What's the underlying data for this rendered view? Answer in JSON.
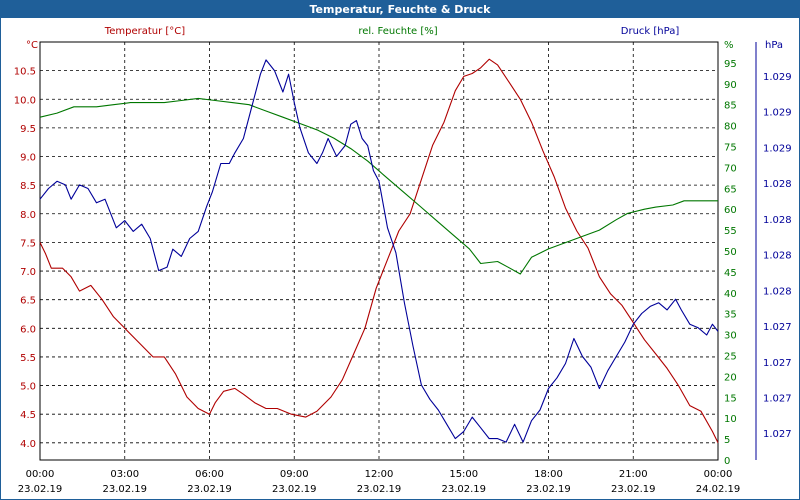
{
  "window": {
    "title": "Temperatur, Feuchte & Druck"
  },
  "chart_data": {
    "type": "line",
    "title": "Temperatur, Feuchte & Druck",
    "grid": true,
    "colors": {
      "temperature": "#b00000",
      "humidity": "#007700",
      "pressure": "#000099",
      "frame": "#1f5f99",
      "grid": "#000000"
    },
    "x": {
      "min": 0,
      "max": 24,
      "ticks": [
        0,
        3,
        6,
        9,
        12,
        15,
        18,
        21,
        24
      ],
      "tick_labels": [
        "00:00",
        "03:00",
        "06:00",
        "09:00",
        "12:00",
        "15:00",
        "18:00",
        "21:00",
        "00:00"
      ],
      "date_labels": [
        "23.02.19",
        "23.02.19",
        "23.02.19",
        "23.02.19",
        "23.02.19",
        "23.02.19",
        "23.02.19",
        "23.02.19",
        "24.02.19"
      ]
    },
    "axes": {
      "temperature": {
        "label": "Temperatur [°C]",
        "unit": "°C",
        "min": 3.7,
        "max": 11.0,
        "ticks": [
          4.0,
          4.5,
          5.0,
          5.5,
          6.0,
          6.5,
          7.0,
          7.5,
          8.0,
          8.5,
          9.0,
          9.5,
          10.0,
          10.5
        ],
        "tick_labels": [
          "4.0",
          "4.5",
          "5.0",
          "5.5",
          "6.0",
          "6.5",
          "7.0",
          "7.5",
          "8.0",
          "8.5",
          "9.0",
          "9.5",
          "10.0",
          "10.5"
        ]
      },
      "humidity": {
        "label": "rel. Feuchte [%]",
        "unit": "%",
        "min": 0,
        "max": 100,
        "ticks": [
          0,
          5,
          10,
          15,
          20,
          25,
          30,
          35,
          40,
          45,
          50,
          55,
          60,
          65,
          70,
          75,
          80,
          85,
          90,
          95
        ],
        "tick_labels": [
          "0",
          "5",
          "10",
          "15",
          "20",
          "25",
          "30",
          "35",
          "40",
          "45",
          "50",
          "55",
          "60",
          "65",
          "70",
          "75",
          "80",
          "85",
          "90",
          "95"
        ]
      },
      "pressure": {
        "label": "Druck [hPa]",
        "unit": "hPa",
        "min": 0,
        "max": 11.7,
        "ticks": [
          0.75,
          1.75,
          2.75,
          3.75,
          4.75,
          5.75,
          6.75,
          7.75,
          8.75,
          9.75,
          10.75
        ],
        "tick_labels": [
          "1.027",
          "1.027",
          "1.027",
          "1.027",
          "1.028",
          "1.028",
          "1.028",
          "1.028",
          "1.029",
          "1.029",
          "1.029"
        ]
      }
    },
    "series": [
      {
        "name": "Temperatur [°C]",
        "axis": "temperature",
        "points": [
          [
            0,
            7.5
          ],
          [
            0.2,
            7.3
          ],
          [
            0.4,
            7.05
          ],
          [
            0.8,
            7.05
          ],
          [
            1.1,
            6.9
          ],
          [
            1.4,
            6.65
          ],
          [
            1.8,
            6.75
          ],
          [
            2.2,
            6.5
          ],
          [
            2.6,
            6.2
          ],
          [
            3,
            6.0
          ],
          [
            3.4,
            5.8
          ],
          [
            3.7,
            5.65
          ],
          [
            4.0,
            5.5
          ],
          [
            4.4,
            5.5
          ],
          [
            4.8,
            5.2
          ],
          [
            5.2,
            4.8
          ],
          [
            5.6,
            4.6
          ],
          [
            6.0,
            4.5
          ],
          [
            6.2,
            4.7
          ],
          [
            6.5,
            4.9
          ],
          [
            6.9,
            4.95
          ],
          [
            7.2,
            4.85
          ],
          [
            7.6,
            4.7
          ],
          [
            8.0,
            4.6
          ],
          [
            8.4,
            4.6
          ],
          [
            8.9,
            4.5
          ],
          [
            9.4,
            4.45
          ],
          [
            9.8,
            4.55
          ],
          [
            10.3,
            4.8
          ],
          [
            10.7,
            5.1
          ],
          [
            11.1,
            5.55
          ],
          [
            11.5,
            6.0
          ],
          [
            11.9,
            6.7
          ],
          [
            12.3,
            7.2
          ],
          [
            12.7,
            7.7
          ],
          [
            13.1,
            8.0
          ],
          [
            13.5,
            8.6
          ],
          [
            13.9,
            9.2
          ],
          [
            14.3,
            9.6
          ],
          [
            14.7,
            10.15
          ],
          [
            15.0,
            10.4
          ],
          [
            15.3,
            10.45
          ],
          [
            15.6,
            10.55
          ],
          [
            15.9,
            10.7
          ],
          [
            16.2,
            10.6
          ],
          [
            16.6,
            10.3
          ],
          [
            17.0,
            10.0
          ],
          [
            17.4,
            9.6
          ],
          [
            17.8,
            9.1
          ],
          [
            18.2,
            8.65
          ],
          [
            18.6,
            8.1
          ],
          [
            19.0,
            7.7
          ],
          [
            19.4,
            7.4
          ],
          [
            19.8,
            6.9
          ],
          [
            20.2,
            6.6
          ],
          [
            20.6,
            6.4
          ],
          [
            21.0,
            6.1
          ],
          [
            21.4,
            5.8
          ],
          [
            21.8,
            5.55
          ],
          [
            22.2,
            5.3
          ],
          [
            22.6,
            5.0
          ],
          [
            23.0,
            4.65
          ],
          [
            23.4,
            4.55
          ],
          [
            23.8,
            4.2
          ],
          [
            24.0,
            4.0
          ]
        ]
      },
      {
        "name": "rel. Feuchte [%]",
        "axis": "humidity",
        "points": [
          [
            0,
            82
          ],
          [
            0.6,
            83
          ],
          [
            1.2,
            84.5
          ],
          [
            2.0,
            84.5
          ],
          [
            2.6,
            85
          ],
          [
            3.2,
            85.5
          ],
          [
            3.8,
            85.5
          ],
          [
            4.4,
            85.5
          ],
          [
            5.0,
            86
          ],
          [
            5.6,
            86.5
          ],
          [
            6.2,
            86
          ],
          [
            6.8,
            85.5
          ],
          [
            7.4,
            85
          ],
          [
            8.0,
            83.5
          ],
          [
            8.6,
            82
          ],
          [
            9.2,
            80.5
          ],
          [
            9.8,
            79
          ],
          [
            10.4,
            77
          ],
          [
            11.0,
            74.5
          ],
          [
            11.6,
            71.5
          ],
          [
            12.2,
            68
          ],
          [
            12.8,
            64.5
          ],
          [
            13.4,
            61
          ],
          [
            14.0,
            57.5
          ],
          [
            14.6,
            54
          ],
          [
            15.2,
            50.5
          ],
          [
            15.6,
            47
          ],
          [
            16.2,
            47.5
          ],
          [
            16.6,
            46
          ],
          [
            17.0,
            44.5
          ],
          [
            17.4,
            48.5
          ],
          [
            18.0,
            50.5
          ],
          [
            18.6,
            52
          ],
          [
            19.2,
            53.5
          ],
          [
            19.8,
            55
          ],
          [
            20.4,
            57.5
          ],
          [
            20.8,
            59
          ],
          [
            21.4,
            60
          ],
          [
            21.8,
            60.5
          ],
          [
            22.4,
            61
          ],
          [
            22.8,
            62
          ],
          [
            23.4,
            62
          ],
          [
            24.0,
            62
          ]
        ]
      },
      {
        "name": "Druck [hPa]",
        "axis": "pressure",
        "points": [
          [
            0,
            7.3
          ],
          [
            0.3,
            7.6
          ],
          [
            0.6,
            7.8
          ],
          [
            0.9,
            7.7
          ],
          [
            1.1,
            7.3
          ],
          [
            1.4,
            7.7
          ],
          [
            1.7,
            7.6
          ],
          [
            2.0,
            7.2
          ],
          [
            2.3,
            7.3
          ],
          [
            2.7,
            6.5
          ],
          [
            3.0,
            6.7
          ],
          [
            3.3,
            6.4
          ],
          [
            3.6,
            6.6
          ],
          [
            3.9,
            6.2
          ],
          [
            4.2,
            5.3
          ],
          [
            4.5,
            5.4
          ],
          [
            4.7,
            5.9
          ],
          [
            5.0,
            5.7
          ],
          [
            5.3,
            6.2
          ],
          [
            5.6,
            6.4
          ],
          [
            5.9,
            7.1
          ],
          [
            6.1,
            7.5
          ],
          [
            6.4,
            8.3
          ],
          [
            6.7,
            8.3
          ],
          [
            6.9,
            8.6
          ],
          [
            7.2,
            9.0
          ],
          [
            7.5,
            9.9
          ],
          [
            7.8,
            10.8
          ],
          [
            8.0,
            11.2
          ],
          [
            8.3,
            10.9
          ],
          [
            8.6,
            10.3
          ],
          [
            8.8,
            10.8
          ],
          [
            9.0,
            10.0
          ],
          [
            9.2,
            9.3
          ],
          [
            9.5,
            8.6
          ],
          [
            9.8,
            8.3
          ],
          [
            10.0,
            8.6
          ],
          [
            10.2,
            9.0
          ],
          [
            10.5,
            8.5
          ],
          [
            10.8,
            8.8
          ],
          [
            11.0,
            9.4
          ],
          [
            11.2,
            9.5
          ],
          [
            11.4,
            9.0
          ],
          [
            11.6,
            8.8
          ],
          [
            11.8,
            8.1
          ],
          [
            12.0,
            7.8
          ],
          [
            12.3,
            6.5
          ],
          [
            12.6,
            5.8
          ],
          [
            12.9,
            4.4
          ],
          [
            13.2,
            3.2
          ],
          [
            13.5,
            2.1
          ],
          [
            13.8,
            1.7
          ],
          [
            14.1,
            1.4
          ],
          [
            14.4,
            1.0
          ],
          [
            14.7,
            0.6
          ],
          [
            15.0,
            0.8
          ],
          [
            15.3,
            1.2
          ],
          [
            15.6,
            0.9
          ],
          [
            15.9,
            0.6
          ],
          [
            16.2,
            0.6
          ],
          [
            16.5,
            0.5
          ],
          [
            16.8,
            1.0
          ],
          [
            17.1,
            0.5
          ],
          [
            17.4,
            1.1
          ],
          [
            17.7,
            1.4
          ],
          [
            18.0,
            2.0
          ],
          [
            18.3,
            2.3
          ],
          [
            18.6,
            2.7
          ],
          [
            18.9,
            3.4
          ],
          [
            19.2,
            2.9
          ],
          [
            19.5,
            2.6
          ],
          [
            19.8,
            2.0
          ],
          [
            20.1,
            2.5
          ],
          [
            20.4,
            2.9
          ],
          [
            20.7,
            3.3
          ],
          [
            21.0,
            3.8
          ],
          [
            21.3,
            4.1
          ],
          [
            21.6,
            4.3
          ],
          [
            21.9,
            4.4
          ],
          [
            22.2,
            4.2
          ],
          [
            22.5,
            4.5
          ],
          [
            22.7,
            4.2
          ],
          [
            23.0,
            3.8
          ],
          [
            23.3,
            3.7
          ],
          [
            23.6,
            3.5
          ],
          [
            23.8,
            3.8
          ],
          [
            24.0,
            3.6
          ]
        ]
      }
    ]
  }
}
